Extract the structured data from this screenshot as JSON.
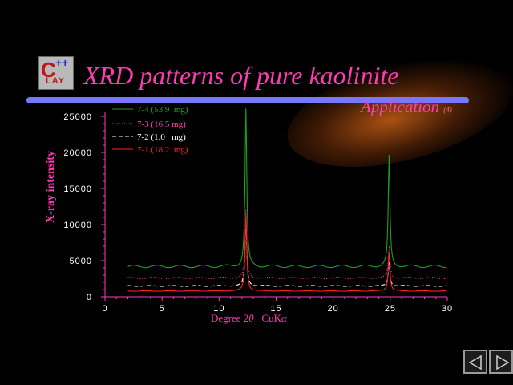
{
  "slide": {
    "title": "XRD patterns of pure kaolinite",
    "app_label": "Application",
    "app_sub": "(4)",
    "logo_text": "CLAY++",
    "colors": {
      "title": "#ff3cb4",
      "bar": "#7878ff",
      "axis": "#ff3cb4",
      "ticks": "#ffffff"
    }
  },
  "chart_data": {
    "type": "line",
    "xlabel_main": "Degree 2",
    "xlabel_theta": "θ",
    "xlabel_cu": "CuK",
    "xlabel_alpha": "α",
    "ylabel": "X-ray intensity",
    "xlim": [
      0,
      30
    ],
    "ylim": [
      0,
      25000
    ],
    "xticks": [
      "0",
      "5",
      "10",
      "15",
      "20",
      "25",
      "30"
    ],
    "yticks": [
      "0",
      "5000",
      "10000",
      "15000",
      "20000",
      "25000"
    ],
    "legend_position": "top-left",
    "series": [
      {
        "name": "7-4 (53.9  mg)",
        "color": "#1ea01e",
        "dash": "solid",
        "baseline": 4200,
        "peaks": [
          [
            12.35,
            26000
          ],
          [
            24.9,
            19500
          ]
        ]
      },
      {
        "name": "7-3 (16.5 mg)",
        "color": "#ff3cb4",
        "dash": "dotted",
        "baseline": 2600,
        "peaks": [
          [
            12.35,
            12000
          ],
          [
            24.9,
            7200
          ]
        ]
      },
      {
        "name": "7-2 (1.0   mg)",
        "color": "#ffffff",
        "dash": "dashed",
        "baseline": 1500,
        "peaks": [
          [
            12.35,
            10500
          ],
          [
            24.9,
            4800
          ]
        ]
      },
      {
        "name": "7-1 (18.2  mg)",
        "color": "#ff2020",
        "dash": "solid",
        "baseline": 800,
        "peaks": [
          [
            12.35,
            11500
          ],
          [
            24.9,
            6200
          ]
        ]
      }
    ]
  },
  "nav": {
    "prev": "previous",
    "next": "next"
  }
}
